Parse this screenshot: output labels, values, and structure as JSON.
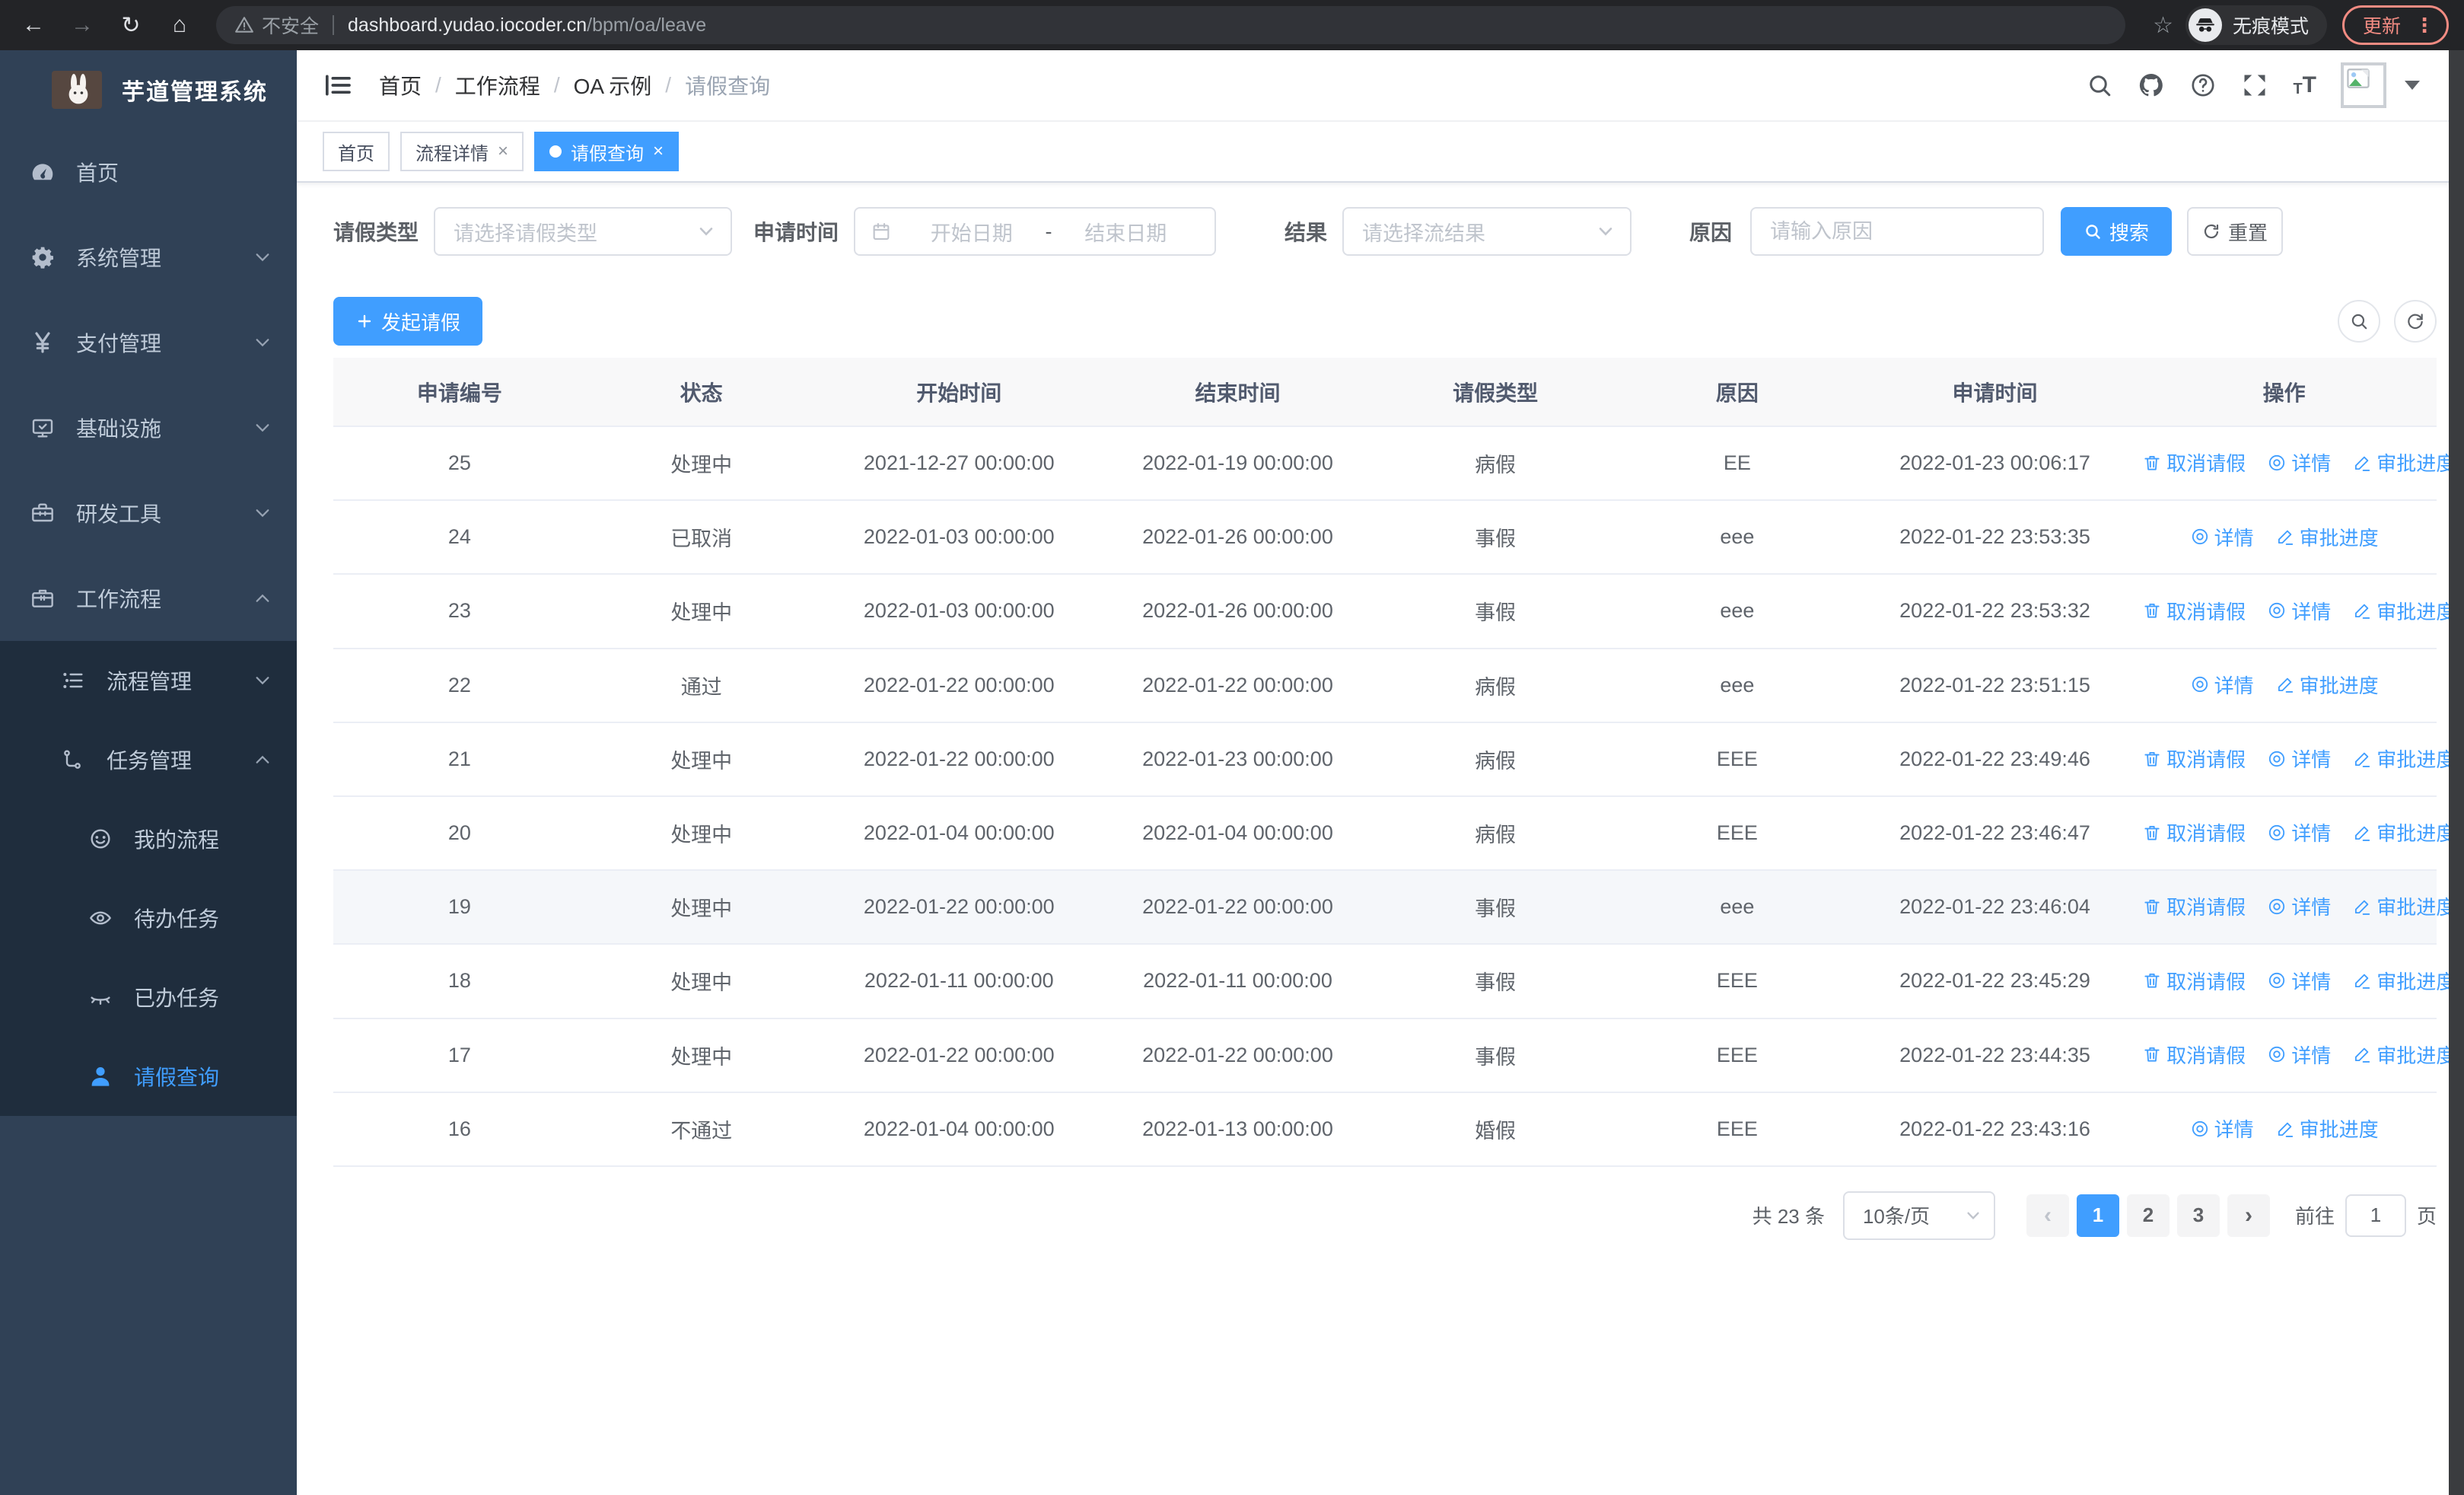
{
  "browser": {
    "security_label": "不安全",
    "url_host": "dashboard.yudao.iocoder.cn",
    "url_path": "/bpm/oa/leave",
    "incognito_label": "无痕模式",
    "update_label": "更新"
  },
  "sidebar": {
    "title": "芋道管理系统",
    "items": [
      {
        "name": "home",
        "label": "首页",
        "icon": "dashboard-icon"
      },
      {
        "name": "system-mgmt",
        "label": "系统管理",
        "icon": "gear-icon",
        "chevron": "down"
      },
      {
        "name": "payment-mgmt",
        "label": "支付管理",
        "icon": "yen-icon",
        "chevron": "down"
      },
      {
        "name": "infrastructure",
        "label": "基础设施",
        "icon": "monitor-icon",
        "chevron": "down"
      },
      {
        "name": "dev-tools",
        "label": "研发工具",
        "icon": "toolbox-icon",
        "chevron": "down"
      },
      {
        "name": "workflow",
        "label": "工作流程",
        "icon": "briefcase-icon",
        "chevron": "up"
      }
    ],
    "submenu": [
      {
        "name": "process-mgmt",
        "label": "流程管理",
        "icon": "list-icon",
        "chevron": "down",
        "level": 2
      },
      {
        "name": "task-mgmt",
        "label": "任务管理",
        "icon": "flow-icon",
        "chevron": "up",
        "level": 2
      },
      {
        "name": "my-process",
        "label": "我的流程",
        "icon": "robot-icon",
        "level": 3
      },
      {
        "name": "todo-tasks",
        "label": "待办任务",
        "icon": "eye-icon",
        "level": 3
      },
      {
        "name": "done-tasks",
        "label": "已办任务",
        "icon": "eye-closed-icon",
        "level": 3
      },
      {
        "name": "leave-query",
        "label": "请假查询",
        "icon": "user-icon",
        "level": 3,
        "active": true
      }
    ]
  },
  "header": {
    "breadcrumb": [
      "首页",
      "工作流程",
      "OA 示例",
      "请假查询"
    ]
  },
  "tabs": [
    {
      "name": "tab-home",
      "label": "首页"
    },
    {
      "name": "tab-process-detail",
      "label": "流程详情",
      "closable": true
    },
    {
      "name": "tab-leave-query",
      "label": "请假查询",
      "closable": true,
      "active": true,
      "dot": true
    }
  ],
  "filters": {
    "leave_type_label": "请假类型",
    "leave_type_placeholder": "请选择请假类型",
    "apply_time_label": "申请时间",
    "start_placeholder": "开始日期",
    "range_separator": "-",
    "end_placeholder": "结束日期",
    "result_label": "结果",
    "result_placeholder": "请选择流结果",
    "reason_label": "原因",
    "reason_placeholder": "请输入原因",
    "search_label": "搜索",
    "reset_label": "重置"
  },
  "toolbar": {
    "create_label": "发起请假"
  },
  "table": {
    "columns": [
      "申请编号",
      "状态",
      "开始时间",
      "结束时间",
      "请假类型",
      "原因",
      "申请时间",
      "操作"
    ],
    "action_labels": {
      "cancel": "取消请假",
      "detail": "详情",
      "progress": "审批进度"
    },
    "rows": [
      {
        "id": "25",
        "status": "处理中",
        "start": "2021-12-27 00:00:00",
        "end": "2022-01-19 00:00:00",
        "type": "病假",
        "reason": "EE",
        "applied": "2022-01-23 00:06:17",
        "actions": [
          "cancel",
          "detail",
          "progress"
        ]
      },
      {
        "id": "24",
        "status": "已取消",
        "start": "2022-01-03 00:00:00",
        "end": "2022-01-26 00:00:00",
        "type": "事假",
        "reason": "eee",
        "applied": "2022-01-22 23:53:35",
        "actions": [
          "detail",
          "progress"
        ]
      },
      {
        "id": "23",
        "status": "处理中",
        "start": "2022-01-03 00:00:00",
        "end": "2022-01-26 00:00:00",
        "type": "事假",
        "reason": "eee",
        "applied": "2022-01-22 23:53:32",
        "actions": [
          "cancel",
          "detail",
          "progress"
        ]
      },
      {
        "id": "22",
        "status": "通过",
        "start": "2022-01-22 00:00:00",
        "end": "2022-01-22 00:00:00",
        "type": "病假",
        "reason": "eee",
        "applied": "2022-01-22 23:51:15",
        "actions": [
          "detail",
          "progress"
        ]
      },
      {
        "id": "21",
        "status": "处理中",
        "start": "2022-01-22 00:00:00",
        "end": "2022-01-23 00:00:00",
        "type": "病假",
        "reason": "EEE",
        "applied": "2022-01-22 23:49:46",
        "actions": [
          "cancel",
          "detail",
          "progress"
        ]
      },
      {
        "id": "20",
        "status": "处理中",
        "start": "2022-01-04 00:00:00",
        "end": "2022-01-04 00:00:00",
        "type": "病假",
        "reason": "EEE",
        "applied": "2022-01-22 23:46:47",
        "actions": [
          "cancel",
          "detail",
          "progress"
        ]
      },
      {
        "id": "19",
        "status": "处理中",
        "start": "2022-01-22 00:00:00",
        "end": "2022-01-22 00:00:00",
        "type": "事假",
        "reason": "eee",
        "applied": "2022-01-22 23:46:04",
        "actions": [
          "cancel",
          "detail",
          "progress"
        ],
        "highlight": true
      },
      {
        "id": "18",
        "status": "处理中",
        "start": "2022-01-11 00:00:00",
        "end": "2022-01-11 00:00:00",
        "type": "事假",
        "reason": "EEE",
        "applied": "2022-01-22 23:45:29",
        "actions": [
          "cancel",
          "detail",
          "progress"
        ]
      },
      {
        "id": "17",
        "status": "处理中",
        "start": "2022-01-22 00:00:00",
        "end": "2022-01-22 00:00:00",
        "type": "事假",
        "reason": "EEE",
        "applied": "2022-01-22 23:44:35",
        "actions": [
          "cancel",
          "detail",
          "progress"
        ]
      },
      {
        "id": "16",
        "status": "不通过",
        "start": "2022-01-04 00:00:00",
        "end": "2022-01-13 00:00:00",
        "type": "婚假",
        "reason": "EEE",
        "applied": "2022-01-22 23:43:16",
        "actions": [
          "detail",
          "progress"
        ]
      }
    ]
  },
  "pagination": {
    "total_label": "共 23 条",
    "page_size": "10条/页",
    "pages": [
      "1",
      "2",
      "3"
    ],
    "active_page": "1",
    "prev_symbol": "‹",
    "next_symbol": "›",
    "goto_label": "前往",
    "goto_value": "1",
    "page_suffix": "页"
  },
  "colors": {
    "accent": "#409eff",
    "sidebar_bg": "#304156",
    "submenu_bg": "#1f2d3d",
    "menu_text": "#bfcbd9",
    "table_border": "#ebeef5",
    "header_row_bg": "#f8f8f9",
    "highlight_row_bg": "#f5f7fa",
    "update_badge": "#f28b82",
    "chrome_bg": "#232427"
  }
}
